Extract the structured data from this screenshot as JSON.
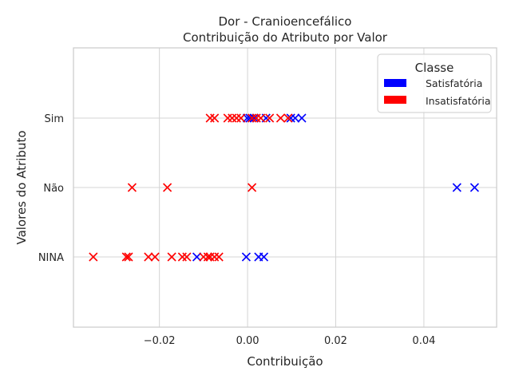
{
  "chart_data": {
    "type": "scatter",
    "title": "Dor - Cranioencefálico",
    "subtitle": "Contribuição do Atributo por Valor",
    "xlabel": "Contribuição",
    "ylabel": "Valores do Atributo",
    "categories": [
      "NINA",
      "Não",
      "Sim"
    ],
    "xlim": [
      -0.0395,
      0.0565
    ],
    "xticks": [
      -0.02,
      0.0,
      0.02,
      0.04
    ],
    "xtick_labels": [
      "−0.02",
      "0.00",
      "0.02",
      "0.04"
    ],
    "grid": true,
    "legend": {
      "title": "Classe",
      "placement": "top-right",
      "entries": [
        {
          "label": "Satisfatória",
          "color": "#0000ff"
        },
        {
          "label": "Insatisfatória",
          "color": "#ff0000"
        }
      ]
    },
    "series": [
      {
        "name": "Satisfatória",
        "color": "#0000ff",
        "marker": "x",
        "points": [
          {
            "x": -0.0001,
            "y": "Sim"
          },
          {
            "x": 0.0005,
            "y": "Sim"
          },
          {
            "x": 0.0015,
            "y": "Sim"
          },
          {
            "x": 0.0042,
            "y": "Sim"
          },
          {
            "x": 0.0098,
            "y": "Sim"
          },
          {
            "x": 0.0108,
            "y": "Sim"
          },
          {
            "x": 0.0123,
            "y": "Sim"
          },
          {
            "x": 0.0475,
            "y": "Não"
          },
          {
            "x": 0.0515,
            "y": "Não"
          },
          {
            "x": -0.0115,
            "y": "NINA"
          },
          {
            "x": -0.0003,
            "y": "NINA"
          },
          {
            "x": 0.0025,
            "y": "NINA"
          },
          {
            "x": 0.0037,
            "y": "NINA"
          }
        ]
      },
      {
        "name": "Insatisfatória",
        "color": "#ff0000",
        "marker": "x",
        "points": [
          {
            "x": -0.0085,
            "y": "Sim"
          },
          {
            "x": -0.0075,
            "y": "Sim"
          },
          {
            "x": -0.0045,
            "y": "Sim"
          },
          {
            "x": -0.0035,
            "y": "Sim"
          },
          {
            "x": -0.0025,
            "y": "Sim"
          },
          {
            "x": -0.0015,
            "y": "Sim"
          },
          {
            "x": 0.001,
            "y": "Sim"
          },
          {
            "x": 0.002,
            "y": "Sim"
          },
          {
            "x": 0.003,
            "y": "Sim"
          },
          {
            "x": 0.005,
            "y": "Sim"
          },
          {
            "x": 0.0075,
            "y": "Sim"
          },
          {
            "x": 0.0092,
            "y": "Sim"
          },
          {
            "x": -0.0262,
            "y": "Não"
          },
          {
            "x": -0.0182,
            "y": "Não"
          },
          {
            "x": 0.001,
            "y": "Não"
          },
          {
            "x": -0.035,
            "y": "NINA"
          },
          {
            "x": -0.0275,
            "y": "NINA"
          },
          {
            "x": -0.027,
            "y": "NINA"
          },
          {
            "x": -0.0225,
            "y": "NINA"
          },
          {
            "x": -0.021,
            "y": "NINA"
          },
          {
            "x": -0.0172,
            "y": "NINA"
          },
          {
            "x": -0.0148,
            "y": "NINA"
          },
          {
            "x": -0.0138,
            "y": "NINA"
          },
          {
            "x": -0.01,
            "y": "NINA"
          },
          {
            "x": -0.009,
            "y": "NINA"
          },
          {
            "x": -0.0085,
            "y": "NINA"
          },
          {
            "x": -0.0075,
            "y": "NINA"
          },
          {
            "x": -0.0065,
            "y": "NINA"
          }
        ]
      }
    ]
  }
}
